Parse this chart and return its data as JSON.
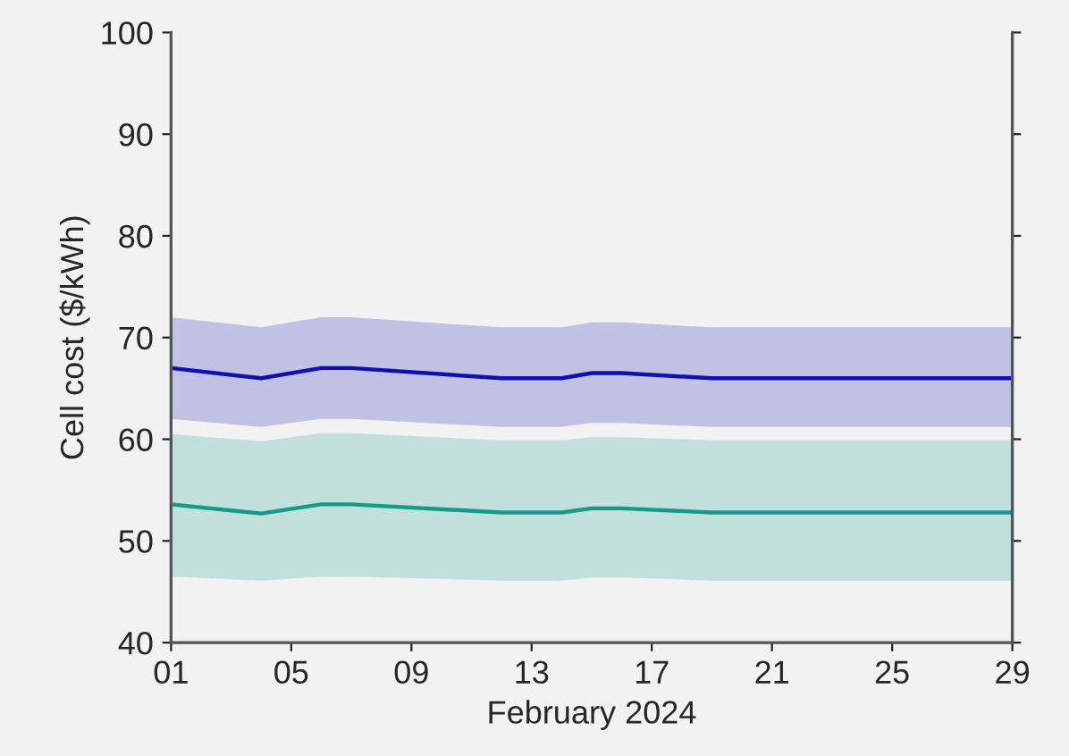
{
  "chart_data": {
    "type": "line",
    "xlabel": "February 2024",
    "ylabel": "Cell cost ($/kWh)",
    "x": [
      "2024-02-01",
      "2024-02-04",
      "2024-02-06",
      "2024-02-07",
      "2024-02-12",
      "2024-02-14",
      "2024-02-15",
      "2024-02-16",
      "2024-02-19",
      "2024-02-29"
    ],
    "series": [
      {
        "color": "#1010b0",
        "values": [
          67,
          66,
          67,
          67,
          66,
          66,
          66.5,
          66.5,
          66,
          66
        ],
        "lower": [
          62,
          61.2,
          62,
          62,
          61.2,
          61.2,
          61.6,
          61.6,
          61.2,
          61.2
        ],
        "upper": [
          72,
          71,
          72,
          72,
          71,
          71,
          71.5,
          71.5,
          71,
          71
        ]
      },
      {
        "color": "#14998a",
        "values": [
          53.6,
          52.7,
          53.6,
          53.6,
          52.8,
          52.8,
          53.2,
          53.2,
          52.8,
          52.8
        ],
        "lower": [
          46.5,
          46.1,
          46.5,
          46.5,
          46.1,
          46.1,
          46.4,
          46.4,
          46.1,
          46.1
        ],
        "upper": [
          60.5,
          59.8,
          60.6,
          60.6,
          59.9,
          59.9,
          60.2,
          60.2,
          59.9,
          59.9
        ]
      }
    ],
    "xlim": [
      "2024-02-01",
      "2024-02-29"
    ],
    "xticks": [
      {
        "value": "2024-02-01",
        "label": "01"
      },
      {
        "value": "2024-02-05",
        "label": "05"
      },
      {
        "value": "2024-02-09",
        "label": "09"
      },
      {
        "value": "2024-02-13",
        "label": "13"
      },
      {
        "value": "2024-02-17",
        "label": "17"
      },
      {
        "value": "2024-02-21",
        "label": "21"
      },
      {
        "value": "2024-02-25",
        "label": "25"
      },
      {
        "value": "2024-02-29",
        "label": "29"
      }
    ],
    "ylim": [
      40,
      100
    ],
    "yticks": [
      40,
      50,
      60,
      70,
      80,
      90,
      100
    ],
    "grid": false,
    "legend": false,
    "marker": "none",
    "line_style": "solid"
  }
}
